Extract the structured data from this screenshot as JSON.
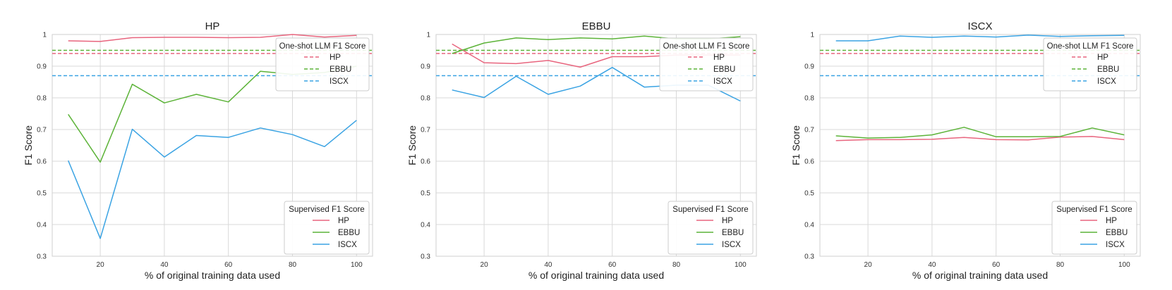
{
  "chart_data": [
    {
      "type": "line",
      "title": "HP",
      "xlabel": "% of original training data used",
      "ylabel": "F1 Score",
      "xlim": [
        5,
        105
      ],
      "ylim": [
        0.3,
        1.0
      ],
      "xticks": [
        20,
        40,
        60,
        80,
        100
      ],
      "yticks": [
        0.3,
        0.4,
        0.5,
        0.6,
        0.7,
        0.8,
        0.9,
        1.0
      ],
      "grid": true,
      "x": [
        10,
        20,
        30,
        40,
        50,
        60,
        70,
        80,
        90,
        100
      ],
      "series": [
        {
          "name": "HP",
          "color": "#e8657e",
          "values": [
            0.98,
            0.978,
            0.99,
            0.991,
            0.991,
            0.99,
            0.991,
            1.0,
            0.992,
            0.997
          ]
        },
        {
          "name": "EBBU",
          "color": "#5cb338",
          "values": [
            0.748,
            0.597,
            0.843,
            0.784,
            0.811,
            0.787,
            0.884,
            0.874,
            0.88,
            0.9
          ]
        },
        {
          "name": "ISCX",
          "color": "#3aa3e3",
          "values": [
            0.602,
            0.356,
            0.701,
            0.613,
            0.681,
            0.675,
            0.705,
            0.684,
            0.646,
            0.729
          ]
        }
      ],
      "reference_lines": [
        {
          "name": "HP",
          "color": "#e8657e",
          "value": 0.94
        },
        {
          "name": "EBBU",
          "color": "#5cb338",
          "value": 0.95
        },
        {
          "name": "ISCX",
          "color": "#3aa3e3",
          "value": 0.87
        }
      ],
      "legend_reference_title": "One-shot LLM F1 Score",
      "legend_reference_placement": "top-right",
      "legend_series_title": "Supervised F1 Score",
      "legend_series_placement": "bottom-right"
    },
    {
      "type": "line",
      "title": "EBBU",
      "xlabel": "% of original training data used",
      "ylabel": "F1 Score",
      "xlim": [
        5,
        105
      ],
      "ylim": [
        0.3,
        1.0
      ],
      "xticks": [
        20,
        40,
        60,
        80,
        100
      ],
      "yticks": [
        0.3,
        0.4,
        0.5,
        0.6,
        0.7,
        0.8,
        0.9,
        1.0
      ],
      "grid": true,
      "x": [
        10,
        20,
        30,
        40,
        50,
        60,
        70,
        80,
        90,
        100
      ],
      "series": [
        {
          "name": "HP",
          "color": "#e8657e",
          "values": [
            0.97,
            0.911,
            0.908,
            0.918,
            0.897,
            0.93,
            0.93,
            0.935,
            0.935,
            0.935
          ]
        },
        {
          "name": "EBBU",
          "color": "#5cb338",
          "values": [
            0.94,
            0.973,
            0.989,
            0.984,
            0.989,
            0.986,
            0.995,
            0.986,
            0.986,
            0.993
          ]
        },
        {
          "name": "ISCX",
          "color": "#3aa3e3",
          "values": [
            0.825,
            0.801,
            0.868,
            0.811,
            0.837,
            0.896,
            0.834,
            0.84,
            0.84,
            0.79
          ]
        }
      ],
      "reference_lines": [
        {
          "name": "HP",
          "color": "#e8657e",
          "value": 0.94
        },
        {
          "name": "EBBU",
          "color": "#5cb338",
          "value": 0.95
        },
        {
          "name": "ISCX",
          "color": "#3aa3e3",
          "value": 0.87
        }
      ],
      "legend_reference_title": "One-shot LLM F1 Score",
      "legend_reference_placement": "top-right",
      "legend_series_title": "Supervised F1 Score",
      "legend_series_placement": "bottom-right"
    },
    {
      "type": "line",
      "title": "ISCX",
      "xlabel": "% of original training data used",
      "ylabel": "F1 Score",
      "xlim": [
        5,
        105
      ],
      "ylim": [
        0.3,
        1.0
      ],
      "xticks": [
        20,
        40,
        60,
        80,
        100
      ],
      "yticks": [
        0.3,
        0.4,
        0.5,
        0.6,
        0.7,
        0.8,
        0.9,
        1.0
      ],
      "grid": true,
      "x": [
        10,
        20,
        30,
        40,
        50,
        60,
        70,
        80,
        90,
        100
      ],
      "series": [
        {
          "name": "HP",
          "color": "#e8657e",
          "values": [
            0.665,
            0.668,
            0.668,
            0.669,
            0.675,
            0.668,
            0.667,
            0.676,
            0.678,
            0.668
          ]
        },
        {
          "name": "EBBU",
          "color": "#5cb338",
          "values": [
            0.68,
            0.673,
            0.675,
            0.683,
            0.707,
            0.677,
            0.677,
            0.678,
            0.705,
            0.683
          ]
        },
        {
          "name": "ISCX",
          "color": "#3aa3e3",
          "values": [
            0.98,
            0.98,
            0.995,
            0.991,
            0.995,
            0.992,
            0.998,
            0.994,
            0.996,
            0.997
          ]
        }
      ],
      "reference_lines": [
        {
          "name": "HP",
          "color": "#e8657e",
          "value": 0.94
        },
        {
          "name": "EBBU",
          "color": "#5cb338",
          "value": 0.95
        },
        {
          "name": "ISCX",
          "color": "#3aa3e3",
          "value": 0.87
        }
      ],
      "legend_reference_title": "One-shot LLM F1 Score",
      "legend_reference_placement": "top-right",
      "legend_series_title": "Supervised F1 Score",
      "legend_series_placement": "bottom-right"
    }
  ]
}
